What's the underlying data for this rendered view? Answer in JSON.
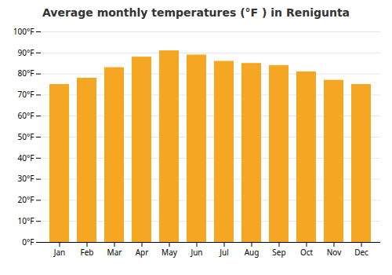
{
  "chart_data": {
    "type": "bar",
    "title": "Average monthly temperatures (°F ) in Renigunta",
    "categories": [
      "Jan",
      "Feb",
      "Mar",
      "Apr",
      "May",
      "Jun",
      "Jul",
      "Aug",
      "Sep",
      "Oct",
      "Nov",
      "Dec"
    ],
    "values": [
      75,
      78,
      83,
      88,
      91,
      89,
      86,
      85,
      84,
      81,
      77,
      75
    ],
    "color": "#F5A623",
    "ylim": [
      0,
      100
    ],
    "yticks": [
      {
        "value": 0,
        "label": "0°F"
      },
      {
        "value": 10,
        "label": "10°F"
      },
      {
        "value": 20,
        "label": "20°F"
      },
      {
        "value": 30,
        "label": "30°F"
      },
      {
        "value": 40,
        "label": "40°F"
      },
      {
        "value": 50,
        "label": "50°F"
      },
      {
        "value": 60,
        "label": "60°F"
      },
      {
        "value": 70,
        "label": "70°F"
      },
      {
        "value": 80,
        "label": "80°F"
      },
      {
        "value": 90,
        "label": "90°F"
      },
      {
        "value": 100,
        "label": "100°F"
      }
    ],
    "grid": true
  }
}
